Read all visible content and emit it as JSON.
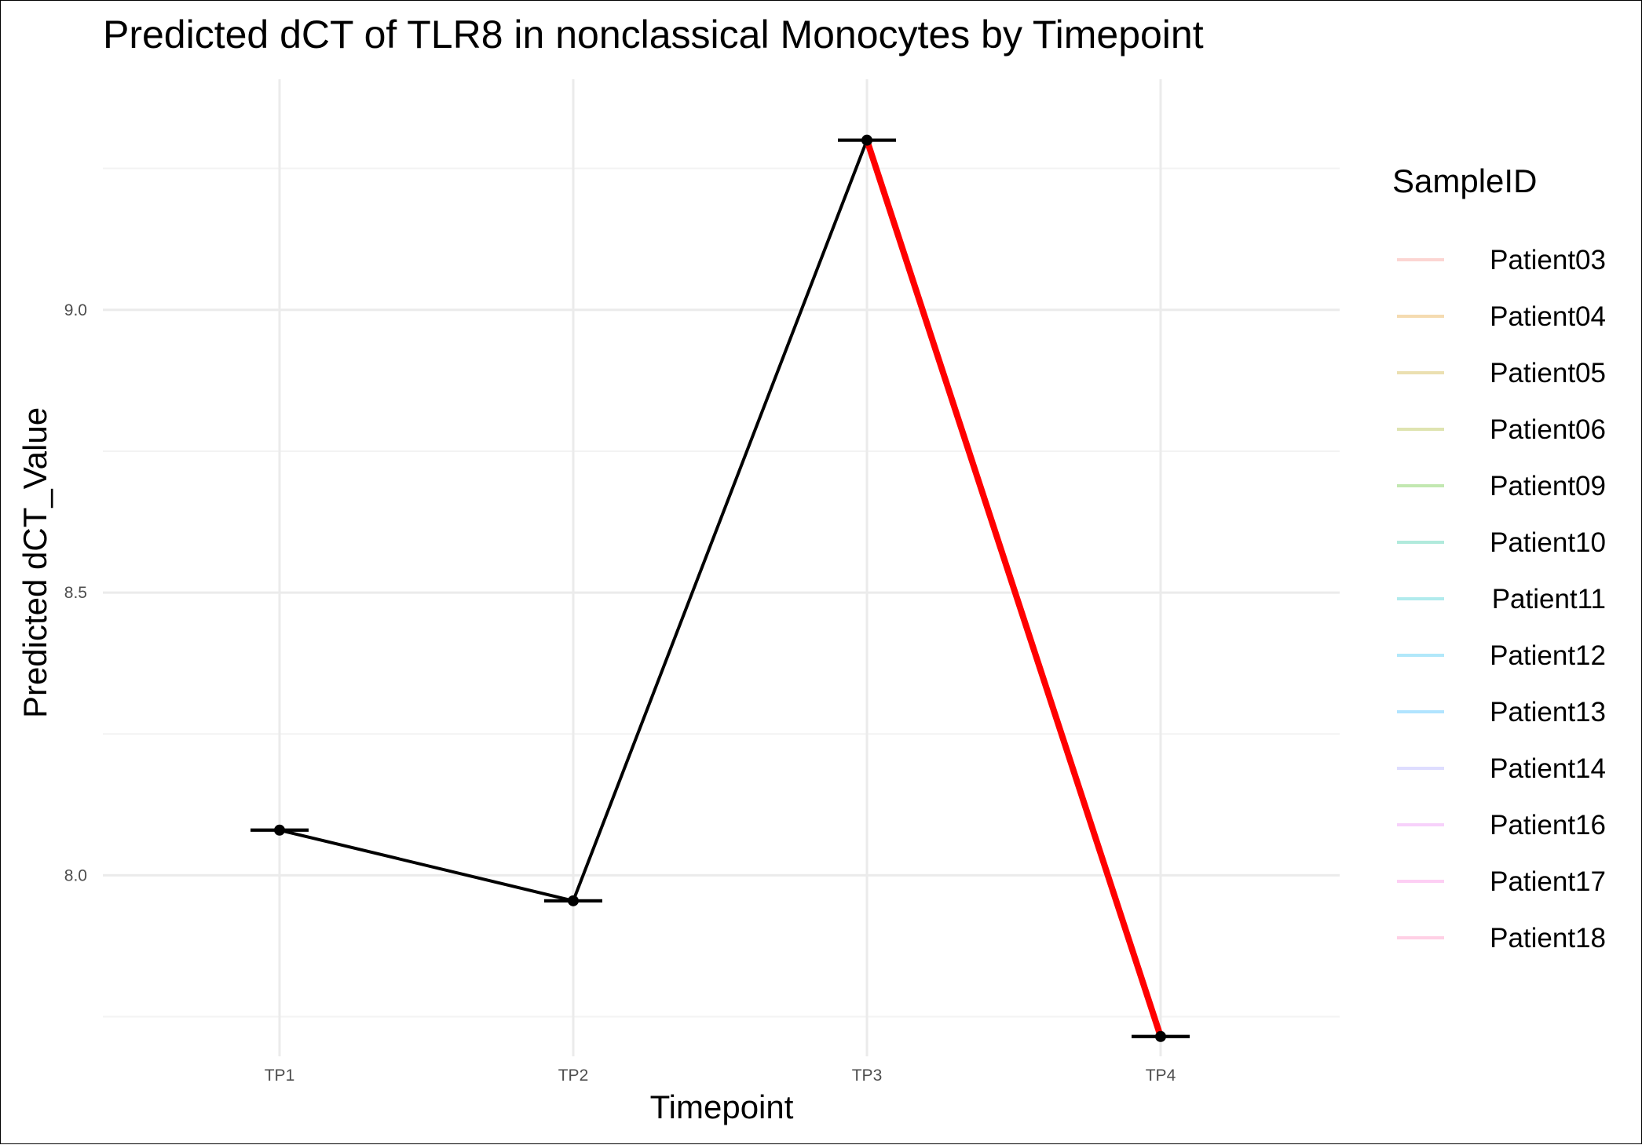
{
  "chart_data": {
    "type": "line",
    "title": "Predicted dCT of  TLR8 in  nonclassical  Monocytes by Timepoint",
    "xlabel": "Timepoint",
    "ylabel": "Predicted dCT_Value",
    "categories": [
      "TP1",
      "TP2",
      "TP3",
      "TP4"
    ],
    "series": [
      {
        "values": [
          8.08,
          7.955,
          9.3,
          7.715
        ],
        "lower": [
          8.08,
          7.955,
          9.3,
          7.715
        ],
        "upper": [
          8.08,
          7.955,
          9.3,
          7.715
        ],
        "color": "#000000",
        "highlight_segment": {
          "from": "TP3",
          "to": "TP4",
          "color": "#ff0000"
        }
      }
    ],
    "yticks": [
      8.0,
      8.5,
      9.0
    ],
    "ylim": [
      7.68,
      9.38
    ],
    "grid": true,
    "legend": {
      "title": "SampleID",
      "position": "right",
      "entries": [
        {
          "label": "Patient03",
          "color": "#f8766d"
        },
        {
          "label": "Patient04",
          "color": "#e08b00"
        },
        {
          "label": "Patient05",
          "color": "#c09b00"
        },
        {
          "label": "Patient06",
          "color": "#99a800"
        },
        {
          "label": "Patient09",
          "color": "#39b600"
        },
        {
          "label": "Patient10",
          "color": "#00bb8e"
        },
        {
          "label": "Patient11",
          "color": "#00bfc4"
        },
        {
          "label": "Patient12",
          "color": "#00b4ef"
        },
        {
          "label": "Patient13",
          "color": "#00a9ff"
        },
        {
          "label": "Patient14",
          "color": "#9590ff"
        },
        {
          "label": "Patient16",
          "color": "#e76bf3"
        },
        {
          "label": "Patient17",
          "color": "#f962dd"
        },
        {
          "label": "Patient18",
          "color": "#ff65ac"
        }
      ]
    }
  }
}
